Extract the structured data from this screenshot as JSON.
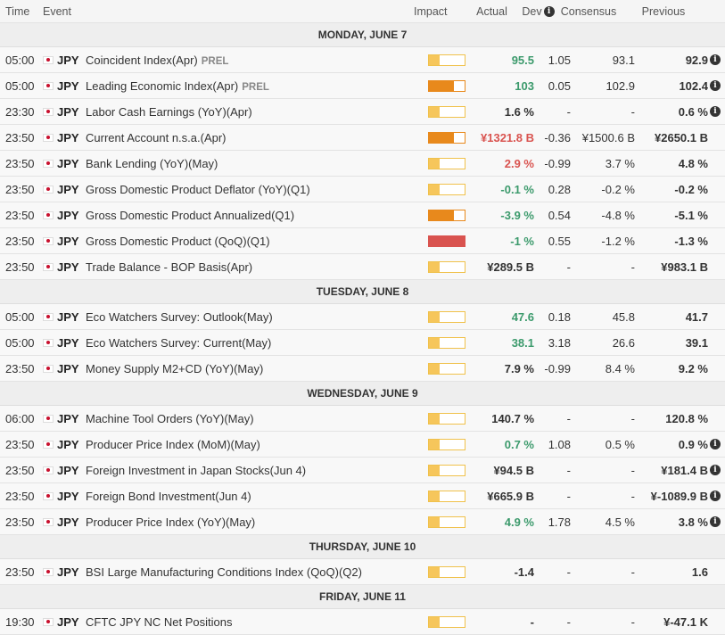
{
  "header": {
    "time": "Time",
    "event": "Event",
    "impact": "Impact",
    "actual": "Actual",
    "dev": "Dev",
    "consensus": "Consensus",
    "previous": "Previous"
  },
  "days": [
    {
      "label": "MONDAY, JUNE 7",
      "events": [
        {
          "time": "05:00",
          "currency": "JPY",
          "event": "Coincident Index(Apr)",
          "tag": "PREL",
          "impact": "low",
          "actual": "95.5",
          "actual_color": "green",
          "dev": "1.05",
          "consensus": "93.1",
          "previous": "92.9",
          "info": true
        },
        {
          "time": "05:00",
          "currency": "JPY",
          "event": "Leading Economic Index(Apr)",
          "tag": "PREL",
          "impact": "medium",
          "actual": "103",
          "actual_color": "green",
          "dev": "0.05",
          "consensus": "102.9",
          "previous": "102.4",
          "info": true
        },
        {
          "time": "23:30",
          "currency": "JPY",
          "event": "Labor Cash Earnings (YoY)(Apr)",
          "tag": "",
          "impact": "low",
          "actual": "1.6 %",
          "actual_color": "dark",
          "dev": "-",
          "consensus": "-",
          "previous": "0.6 %",
          "info": true
        },
        {
          "time": "23:50",
          "currency": "JPY",
          "event": "Current Account n.s.a.(Apr)",
          "tag": "",
          "impact": "medium",
          "actual": "¥1321.8 B",
          "actual_color": "red",
          "dev": "-0.36",
          "consensus": "¥1500.6 B",
          "previous": "¥2650.1 B",
          "info": false
        },
        {
          "time": "23:50",
          "currency": "JPY",
          "event": "Bank Lending (YoY)(May)",
          "tag": "",
          "impact": "low",
          "actual": "2.9 %",
          "actual_color": "red",
          "dev": "-0.99",
          "consensus": "3.7 %",
          "previous": "4.8 %",
          "info": false
        },
        {
          "time": "23:50",
          "currency": "JPY",
          "event": "Gross Domestic Product Deflator (YoY)(Q1)",
          "tag": "",
          "impact": "low",
          "actual": "-0.1 %",
          "actual_color": "green",
          "dev": "0.28",
          "consensus": "-0.2 %",
          "previous": "-0.2 %",
          "info": false
        },
        {
          "time": "23:50",
          "currency": "JPY",
          "event": "Gross Domestic Product Annualized(Q1)",
          "tag": "",
          "impact": "medium",
          "actual": "-3.9 %",
          "actual_color": "green",
          "dev": "0.54",
          "consensus": "-4.8 %",
          "previous": "-5.1 %",
          "info": false
        },
        {
          "time": "23:50",
          "currency": "JPY",
          "event": "Gross Domestic Product (QoQ)(Q1)",
          "tag": "",
          "impact": "high",
          "actual": "-1 %",
          "actual_color": "green",
          "dev": "0.55",
          "consensus": "-1.2 %",
          "previous": "-1.3 %",
          "info": false
        },
        {
          "time": "23:50",
          "currency": "JPY",
          "event": "Trade Balance - BOP Basis(Apr)",
          "tag": "",
          "impact": "low",
          "actual": "¥289.5 B",
          "actual_color": "dark",
          "dev": "-",
          "consensus": "-",
          "previous": "¥983.1 B",
          "info": false
        }
      ]
    },
    {
      "label": "TUESDAY, JUNE 8",
      "events": [
        {
          "time": "05:00",
          "currency": "JPY",
          "event": "Eco Watchers Survey: Outlook(May)",
          "tag": "",
          "impact": "low",
          "actual": "47.6",
          "actual_color": "green",
          "dev": "0.18",
          "consensus": "45.8",
          "previous": "41.7",
          "info": false
        },
        {
          "time": "05:00",
          "currency": "JPY",
          "event": "Eco Watchers Survey: Current(May)",
          "tag": "",
          "impact": "low",
          "actual": "38.1",
          "actual_color": "green",
          "dev": "3.18",
          "consensus": "26.6",
          "previous": "39.1",
          "info": false
        },
        {
          "time": "23:50",
          "currency": "JPY",
          "event": "Money Supply M2+CD (YoY)(May)",
          "tag": "",
          "impact": "low",
          "actual": "7.9 %",
          "actual_color": "dark",
          "dev": "-0.99",
          "consensus": "8.4 %",
          "previous": "9.2 %",
          "info": false
        }
      ]
    },
    {
      "label": "WEDNESDAY, JUNE 9",
      "events": [
        {
          "time": "06:00",
          "currency": "JPY",
          "event": "Machine Tool Orders (YoY)(May)",
          "tag": "",
          "impact": "low",
          "actual": "140.7 %",
          "actual_color": "dark",
          "dev": "-",
          "consensus": "-",
          "previous": "120.8 %",
          "info": false
        },
        {
          "time": "23:50",
          "currency": "JPY",
          "event": "Producer Price Index (MoM)(May)",
          "tag": "",
          "impact": "low",
          "actual": "0.7 %",
          "actual_color": "green",
          "dev": "1.08",
          "consensus": "0.5 %",
          "previous": "0.9 %",
          "info": true
        },
        {
          "time": "23:50",
          "currency": "JPY",
          "event": "Foreign Investment in Japan Stocks(Jun 4)",
          "tag": "",
          "impact": "low",
          "actual": "¥94.5 B",
          "actual_color": "dark",
          "dev": "-",
          "consensus": "-",
          "previous": "¥181.4 B",
          "info": true
        },
        {
          "time": "23:50",
          "currency": "JPY",
          "event": "Foreign Bond Investment(Jun 4)",
          "tag": "",
          "impact": "low",
          "actual": "¥665.9 B",
          "actual_color": "dark",
          "dev": "-",
          "consensus": "-",
          "previous": "¥-1089.9 B",
          "info": true
        },
        {
          "time": "23:50",
          "currency": "JPY",
          "event": "Producer Price Index (YoY)(May)",
          "tag": "",
          "impact": "low",
          "actual": "4.9 %",
          "actual_color": "green",
          "dev": "1.78",
          "consensus": "4.5 %",
          "previous": "3.8 %",
          "info": true
        }
      ]
    },
    {
      "label": "THURSDAY, JUNE 10",
      "events": [
        {
          "time": "23:50",
          "currency": "JPY",
          "event": "BSI Large Manufacturing Conditions Index (QoQ)(Q2)",
          "tag": "",
          "impact": "low",
          "actual": "-1.4",
          "actual_color": "dark",
          "dev": "-",
          "consensus": "-",
          "previous": "1.6",
          "info": false
        }
      ]
    },
    {
      "label": "FRIDAY, JUNE 11",
      "events": [
        {
          "time": "19:30",
          "currency": "JPY",
          "event": "CFTC JPY NC Net Positions",
          "tag": "",
          "impact": "low",
          "actual": "-",
          "actual_color": "dark",
          "dev": "-",
          "consensus": "-",
          "previous": "¥-47.1 K",
          "info": false
        }
      ]
    }
  ]
}
